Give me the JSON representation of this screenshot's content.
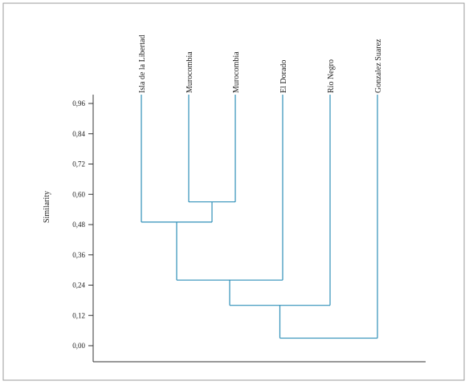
{
  "chart_data": {
    "type": "dendrogram",
    "ylabel": "Similarity",
    "ylim": [
      0,
      0.96
    ],
    "y_ticks": [
      "0,96",
      "0,84",
      "0,72",
      "0,60",
      "0,48",
      "0,36",
      "0,24",
      "0,12",
      "0,00"
    ],
    "y_tick_values": [
      0.96,
      0.84,
      0.72,
      0.6,
      0.48,
      0.36,
      0.24,
      0.12,
      0.0
    ],
    "leaves": [
      "Isla de la Libertad",
      "Murocombia",
      "Murocombia",
      "El Dorado",
      "Río Negro",
      "Gonzalez Suarez"
    ],
    "merges": [
      {
        "left": "Murocombia",
        "right": "Murocombia",
        "similarity": 0.57
      },
      {
        "left": "Isla de la Libertad",
        "right": "Murocombia + Murocombia",
        "similarity": 0.49
      },
      {
        "left": "Isla de la Libertad + Murocombia + Murocombia",
        "right": "El Dorado",
        "similarity": 0.26
      },
      {
        "left": "previous cluster",
        "right": "Río Negro",
        "similarity": 0.16
      },
      {
        "left": "previous cluster",
        "right": "Gonzalez Suarez",
        "similarity": 0.03
      }
    ],
    "colors": {
      "branches": "#2f8fb8",
      "axis": "#333333",
      "frame": "#999999"
    }
  }
}
